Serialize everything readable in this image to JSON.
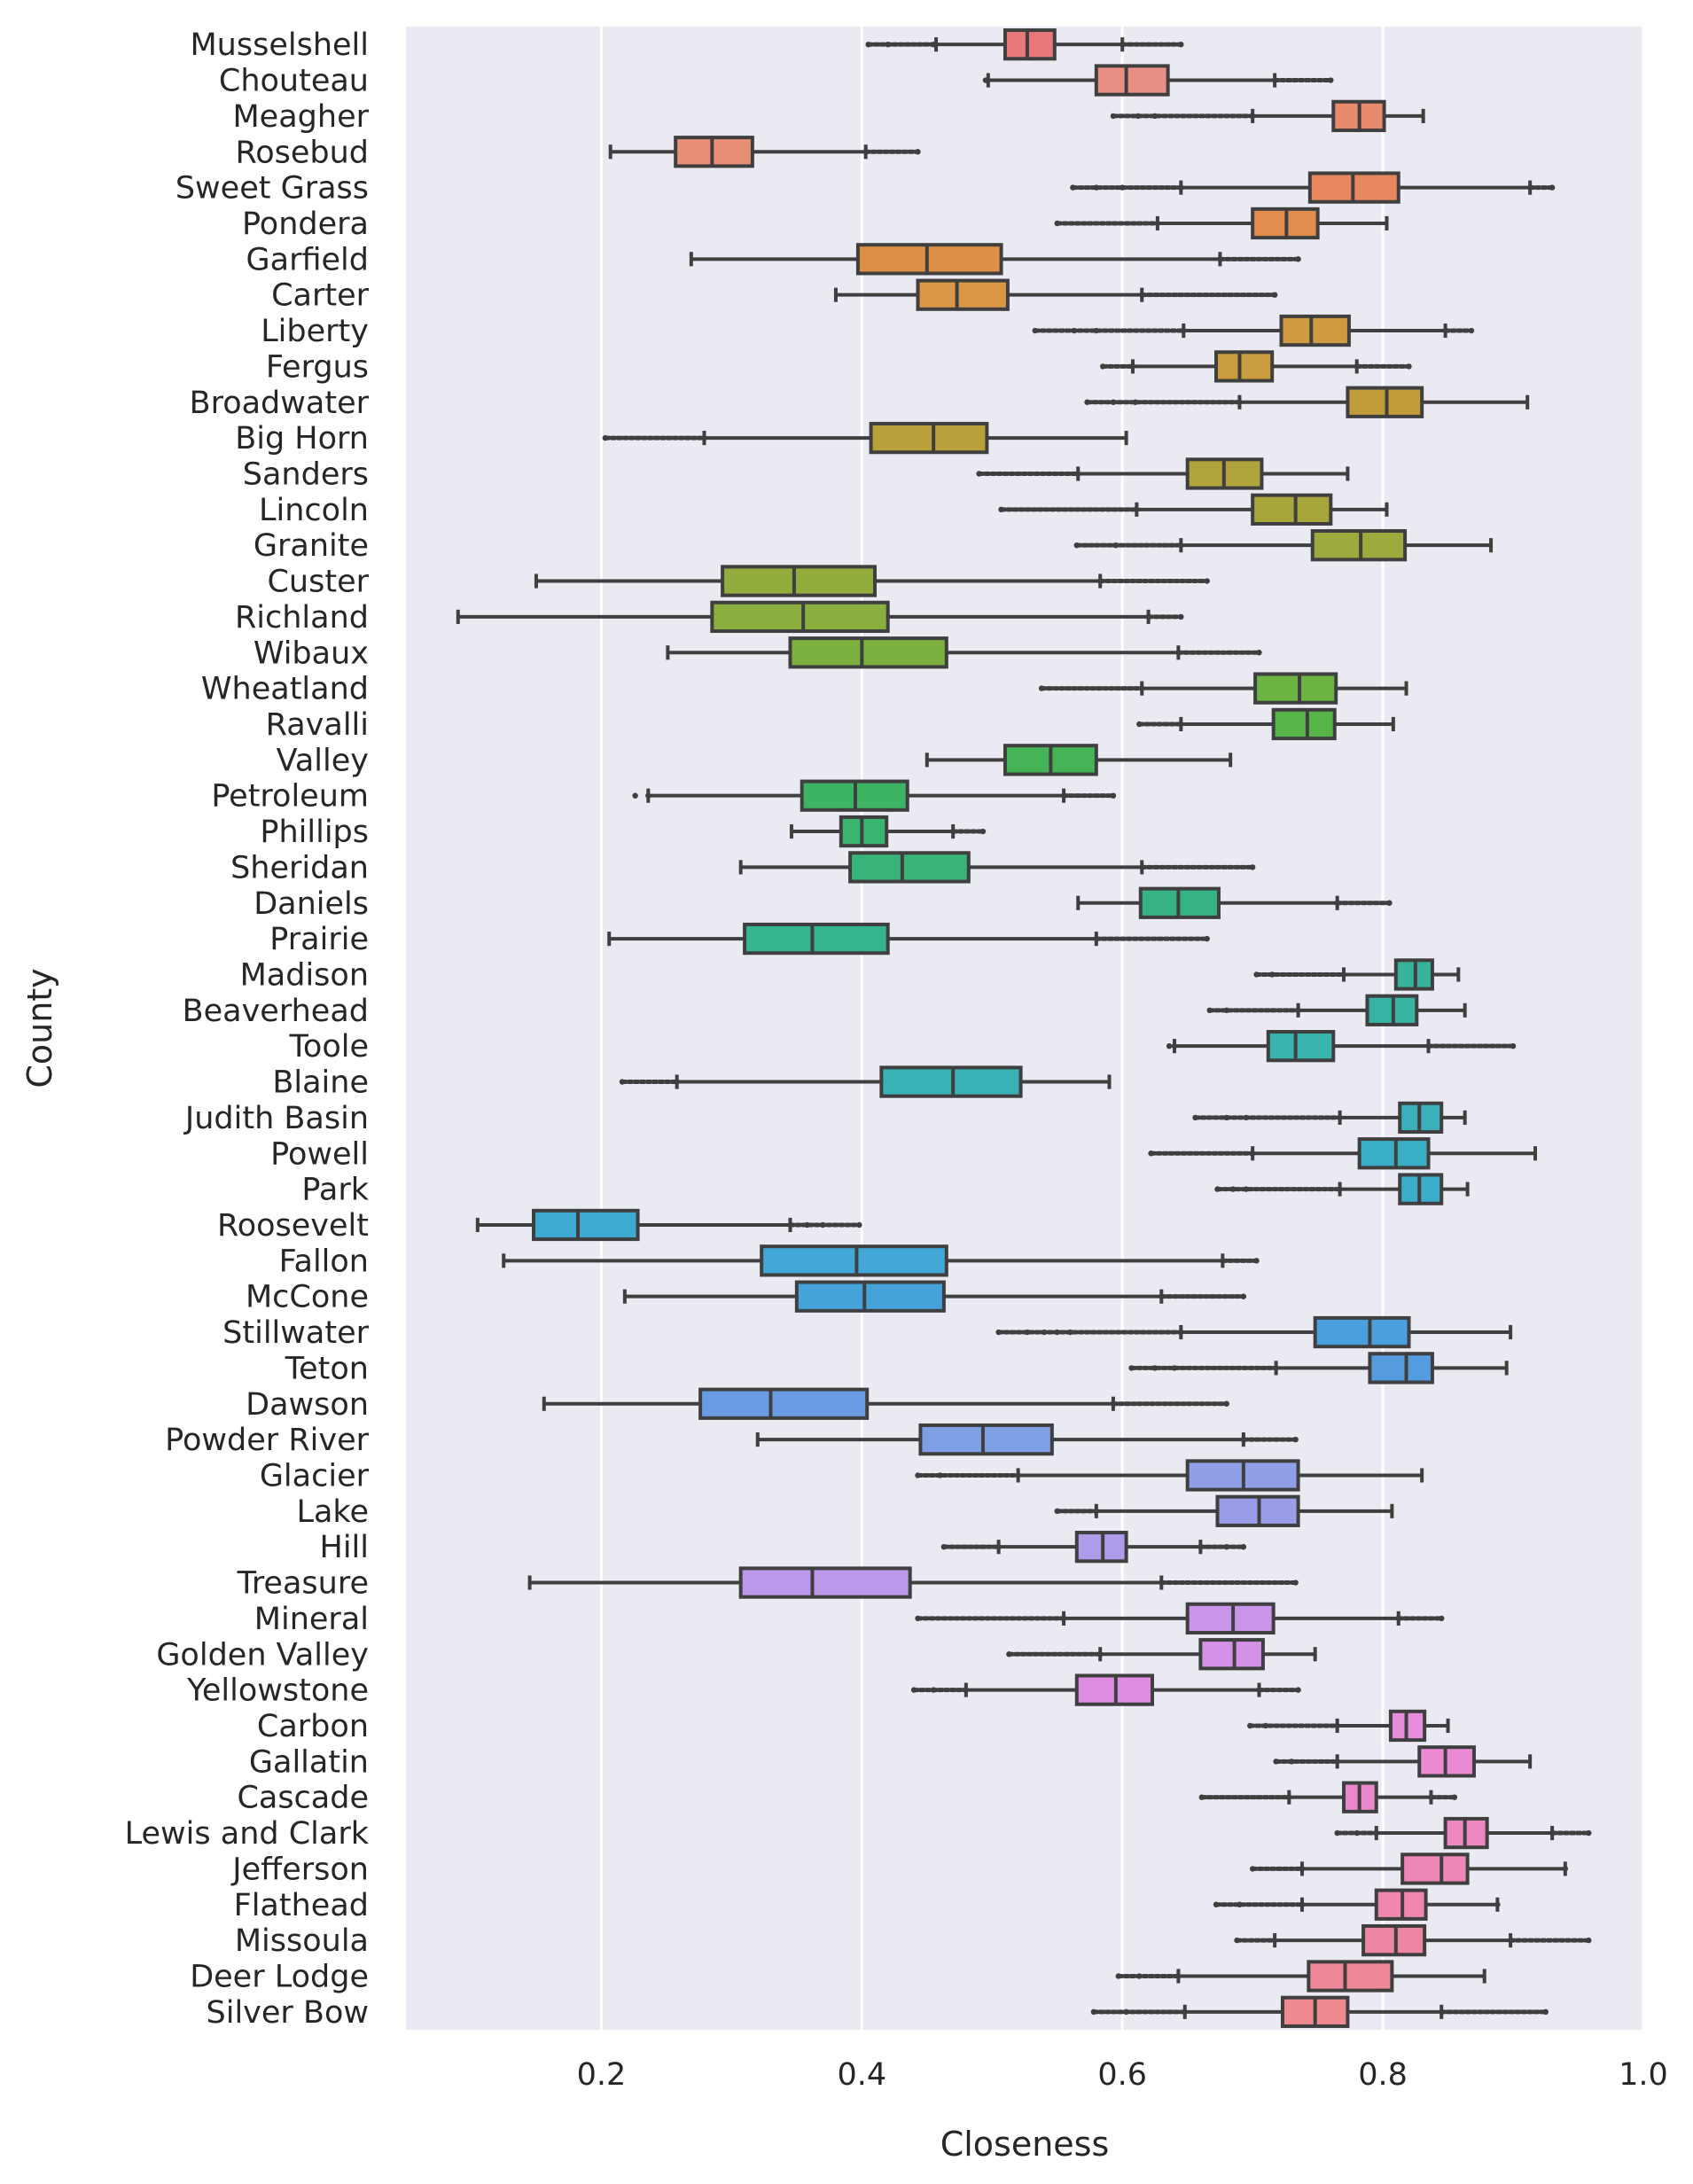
{
  "chart_data": {
    "type": "boxplot",
    "orientation": "horizontal",
    "xlabel": "Closeness",
    "ylabel": "County",
    "xlim": [
      0.05,
      1.0
    ],
    "xticks": [
      0.2,
      0.4,
      0.6,
      0.8,
      1.0
    ],
    "xtick_labels": [
      "0.2",
      "0.4",
      "0.6",
      "0.8",
      "1.0"
    ],
    "grid": true,
    "series": [
      {
        "name": "Musselshell",
        "color": "#e8777a",
        "whisker_low": 0.457,
        "q1": 0.51,
        "median": 0.527,
        "q3": 0.548,
        "whisker_high": 0.6,
        "outliers_low": [
          0.405,
          0.42,
          0.455
        ],
        "outliers_high": [
          0.6,
          0.645
        ]
      },
      {
        "name": "Chouteau",
        "color": "#e98f85",
        "whisker_low": 0.497,
        "q1": 0.58,
        "median": 0.603,
        "q3": 0.635,
        "whisker_high": 0.717,
        "outliers_low": [
          0.495
        ],
        "outliers_high": [
          0.717,
          0.76
        ]
      },
      {
        "name": "Meagher",
        "color": "#e88b6d",
        "whisker_low": 0.7,
        "q1": 0.762,
        "median": 0.782,
        "q3": 0.801,
        "whisker_high": 0.831,
        "outliers_low": [
          0.593,
          0.612,
          0.625,
          0.7
        ],
        "outliers_high": []
      },
      {
        "name": "Rosebud",
        "color": "#e98f76",
        "whisker_low": 0.207,
        "q1": 0.257,
        "median": 0.285,
        "q3": 0.316,
        "whisker_high": 0.403,
        "outliers_low": [],
        "outliers_high": [
          0.403,
          0.443
        ]
      },
      {
        "name": "Sweet Grass",
        "color": "#e6875e",
        "whisker_low": 0.645,
        "q1": 0.744,
        "median": 0.777,
        "q3": 0.812,
        "whisker_high": 0.913,
        "outliers_low": [
          0.562,
          0.58,
          0.6,
          0.645
        ],
        "outliers_high": [
          0.913,
          0.93
        ]
      },
      {
        "name": "Pondera",
        "color": "#e18d4e",
        "whisker_low": 0.627,
        "q1": 0.7,
        "median": 0.726,
        "q3": 0.75,
        "whisker_high": 0.803,
        "outliers_low": [
          0.55,
          0.627
        ],
        "outliers_high": []
      },
      {
        "name": "Garfield",
        "color": "#dd9045",
        "whisker_low": 0.269,
        "q1": 0.397,
        "median": 0.45,
        "q3": 0.507,
        "whisker_high": 0.675,
        "outliers_low": [],
        "outliers_high": [
          0.675,
          0.735
        ]
      },
      {
        "name": "Carter",
        "color": "#d99644",
        "whisker_low": 0.38,
        "q1": 0.443,
        "median": 0.473,
        "q3": 0.512,
        "whisker_high": 0.615,
        "outliers_low": [],
        "outliers_high": [
          0.615,
          0.717
        ]
      },
      {
        "name": "Liberty",
        "color": "#cf9a40",
        "whisker_low": 0.647,
        "q1": 0.722,
        "median": 0.745,
        "q3": 0.774,
        "whisker_high": 0.848,
        "outliers_low": [
          0.533,
          0.563,
          0.58,
          0.647
        ],
        "outliers_high": [
          0.848,
          0.868
        ]
      },
      {
        "name": "Fergus",
        "color": "#c99c3e",
        "whisker_low": 0.608,
        "q1": 0.672,
        "median": 0.69,
        "q3": 0.715,
        "whisker_high": 0.78,
        "outliers_low": [
          0.585,
          0.608
        ],
        "outliers_high": [
          0.78,
          0.82
        ]
      },
      {
        "name": "Broadwater",
        "color": "#c19d3a",
        "whisker_low": 0.69,
        "q1": 0.773,
        "median": 0.803,
        "q3": 0.83,
        "whisker_high": 0.911,
        "outliers_low": [
          0.573,
          0.593,
          0.61,
          0.69
        ],
        "outliers_high": []
      },
      {
        "name": "Big Horn",
        "color": "#baa03b",
        "whisker_low": 0.279,
        "q1": 0.407,
        "median": 0.455,
        "q3": 0.496,
        "whisker_high": 0.603,
        "outliers_low": [
          0.203,
          0.279
        ],
        "outliers_high": []
      },
      {
        "name": "Sanders",
        "color": "#b0a43c",
        "whisker_low": 0.566,
        "q1": 0.65,
        "median": 0.678,
        "q3": 0.707,
        "whisker_high": 0.773,
        "outliers_low": [
          0.49,
          0.566
        ],
        "outliers_high": []
      },
      {
        "name": "Lincoln",
        "color": "#a7a63b",
        "whisker_low": 0.611,
        "q1": 0.7,
        "median": 0.733,
        "q3": 0.76,
        "whisker_high": 0.803,
        "outliers_low": [
          0.507,
          0.611
        ],
        "outliers_high": []
      },
      {
        "name": "Granite",
        "color": "#9eaa3d",
        "whisker_low": 0.645,
        "q1": 0.746,
        "median": 0.783,
        "q3": 0.817,
        "whisker_high": 0.883,
        "outliers_low": [
          0.565,
          0.595,
          0.645
        ],
        "outliers_high": []
      },
      {
        "name": "Custer",
        "color": "#92ac3d",
        "whisker_low": 0.15,
        "q1": 0.293,
        "median": 0.348,
        "q3": 0.41,
        "whisker_high": 0.583,
        "outliers_low": [],
        "outliers_high": [
          0.583,
          0.665
        ]
      },
      {
        "name": "Richland",
        "color": "#8aaf3e",
        "whisker_low": 0.09,
        "q1": 0.285,
        "median": 0.355,
        "q3": 0.42,
        "whisker_high": 0.62,
        "outliers_low": [],
        "outliers_high": [
          0.62,
          0.645
        ]
      },
      {
        "name": "Wibaux",
        "color": "#7cb13f",
        "whisker_low": 0.251,
        "q1": 0.345,
        "median": 0.4,
        "q3": 0.465,
        "whisker_high": 0.643,
        "outliers_low": [],
        "outliers_high": [
          0.643,
          0.705
        ]
      },
      {
        "name": "Wheatland",
        "color": "#6bb442",
        "whisker_low": 0.615,
        "q1": 0.702,
        "median": 0.736,
        "q3": 0.764,
        "whisker_high": 0.818,
        "outliers_low": [
          0.538,
          0.615
        ],
        "outliers_high": []
      },
      {
        "name": "Ravalli",
        "color": "#55b647",
        "whisker_low": 0.645,
        "q1": 0.716,
        "median": 0.742,
        "q3": 0.763,
        "whisker_high": 0.808,
        "outliers_low": [
          0.613,
          0.645
        ],
        "outliers_high": []
      },
      {
        "name": "Valley",
        "color": "#45b456",
        "whisker_low": 0.45,
        "q1": 0.51,
        "median": 0.545,
        "q3": 0.58,
        "whisker_high": 0.683,
        "outliers_low": [],
        "outliers_high": []
      },
      {
        "name": "Petroleum",
        "color": "#3cb464",
        "whisker_low": 0.236,
        "q1": 0.354,
        "median": 0.395,
        "q3": 0.435,
        "whisker_high": 0.555,
        "outliers_low": [
          0.226,
          0.236
        ],
        "outliers_high": [
          0.555,
          0.593
        ]
      },
      {
        "name": "Phillips",
        "color": "#3ab56f",
        "whisker_low": 0.346,
        "q1": 0.384,
        "median": 0.4,
        "q3": 0.419,
        "whisker_high": 0.47,
        "outliers_low": [],
        "outliers_high": [
          0.47,
          0.493
        ]
      },
      {
        "name": "Sheridan",
        "color": "#38b47a",
        "whisker_low": 0.307,
        "q1": 0.391,
        "median": 0.431,
        "q3": 0.482,
        "whisker_high": 0.615,
        "outliers_low": [],
        "outliers_high": [
          0.615,
          0.7
        ]
      },
      {
        "name": "Daniels",
        "color": "#36b385",
        "whisker_low": 0.566,
        "q1": 0.614,
        "median": 0.643,
        "q3": 0.674,
        "whisker_high": 0.765,
        "outliers_low": [],
        "outliers_high": [
          0.765,
          0.805
        ]
      },
      {
        "name": "Prairie",
        "color": "#36b38f",
        "whisker_low": 0.206,
        "q1": 0.31,
        "median": 0.362,
        "q3": 0.42,
        "whisker_high": 0.58,
        "outliers_low": [],
        "outliers_high": [
          0.58,
          0.665
        ]
      },
      {
        "name": "Madison",
        "color": "#36b39a",
        "whisker_low": 0.77,
        "q1": 0.81,
        "median": 0.825,
        "q3": 0.838,
        "whisker_high": 0.858,
        "outliers_low": [
          0.703,
          0.715,
          0.77
        ],
        "outliers_high": []
      },
      {
        "name": "Beaverhead",
        "color": "#37b3a3",
        "whisker_low": 0.735,
        "q1": 0.788,
        "median": 0.808,
        "q3": 0.826,
        "whisker_high": 0.863,
        "outliers_low": [
          0.667,
          0.68,
          0.735
        ],
        "outliers_high": []
      },
      {
        "name": "Toole",
        "color": "#38b3ad",
        "whisker_low": 0.64,
        "q1": 0.712,
        "median": 0.733,
        "q3": 0.762,
        "whisker_high": 0.835,
        "outliers_low": [
          0.636,
          0.64
        ],
        "outliers_high": [
          0.835,
          0.9
        ]
      },
      {
        "name": "Blaine",
        "color": "#38b2b4",
        "whisker_low": 0.258,
        "q1": 0.415,
        "median": 0.47,
        "q3": 0.522,
        "whisker_high": 0.59,
        "outliers_low": [
          0.216,
          0.258
        ],
        "outliers_high": []
      },
      {
        "name": "Judith Basin",
        "color": "#39b0bc",
        "whisker_low": 0.767,
        "q1": 0.813,
        "median": 0.828,
        "q3": 0.845,
        "whisker_high": 0.863,
        "outliers_low": [
          0.656,
          0.68,
          0.695,
          0.767
        ],
        "outliers_high": []
      },
      {
        "name": "Powell",
        "color": "#3aaec4",
        "whisker_low": 0.7,
        "q1": 0.782,
        "median": 0.81,
        "q3": 0.835,
        "whisker_high": 0.917,
        "outliers_low": [
          0.622,
          0.7
        ],
        "outliers_high": []
      },
      {
        "name": "Park",
        "color": "#3badcb",
        "whisker_low": 0.767,
        "q1": 0.813,
        "median": 0.828,
        "q3": 0.845,
        "whisker_high": 0.865,
        "outliers_low": [
          0.673,
          0.685,
          0.695,
          0.767
        ],
        "outliers_high": []
      },
      {
        "name": "Roosevelt",
        "color": "#3caad1",
        "whisker_low": 0.105,
        "q1": 0.148,
        "median": 0.182,
        "q3": 0.228,
        "whisker_high": 0.345,
        "outliers_low": [],
        "outliers_high": [
          0.345,
          0.358,
          0.37,
          0.398
        ]
      },
      {
        "name": "Fallon",
        "color": "#40a7d6",
        "whisker_low": 0.125,
        "q1": 0.323,
        "median": 0.396,
        "q3": 0.465,
        "whisker_high": 0.677,
        "outliers_low": [],
        "outliers_high": [
          0.677,
          0.703
        ]
      },
      {
        "name": "McCone",
        "color": "#45a3da",
        "whisker_low": 0.218,
        "q1": 0.35,
        "median": 0.402,
        "q3": 0.463,
        "whisker_high": 0.63,
        "outliers_low": [],
        "outliers_high": [
          0.63,
          0.693
        ]
      },
      {
        "name": "Stillwater",
        "color": "#4c9fdd",
        "whisker_low": 0.645,
        "q1": 0.748,
        "median": 0.79,
        "q3": 0.82,
        "whisker_high": 0.898,
        "outliers_low": [
          0.505,
          0.527,
          0.54,
          0.55,
          0.56,
          0.645
        ],
        "outliers_high": []
      },
      {
        "name": "Teton",
        "color": "#559be0",
        "whisker_low": 0.718,
        "q1": 0.79,
        "median": 0.818,
        "q3": 0.838,
        "whisker_high": 0.895,
        "outliers_low": [
          0.607,
          0.625,
          0.64,
          0.718
        ],
        "outliers_high": []
      },
      {
        "name": "Dawson",
        "color": "#6a9ce3",
        "whisker_low": 0.156,
        "q1": 0.276,
        "median": 0.33,
        "q3": 0.404,
        "whisker_high": 0.593,
        "outliers_low": [],
        "outliers_high": [
          0.593,
          0.68
        ]
      },
      {
        "name": "Powder River",
        "color": "#7f9fe5",
        "whisker_low": 0.32,
        "q1": 0.445,
        "median": 0.493,
        "q3": 0.546,
        "whisker_high": 0.693,
        "outliers_low": [],
        "outliers_high": [
          0.693,
          0.733
        ]
      },
      {
        "name": "Glacier",
        "color": "#8f9fe8",
        "whisker_low": 0.52,
        "q1": 0.65,
        "median": 0.693,
        "q3": 0.735,
        "whisker_high": 0.83,
        "outliers_low": [
          0.443,
          0.46,
          0.52
        ],
        "outliers_high": []
      },
      {
        "name": "Lake",
        "color": "#9c9de9",
        "whisker_low": 0.58,
        "q1": 0.673,
        "median": 0.705,
        "q3": 0.735,
        "whisker_high": 0.807,
        "outliers_low": [
          0.55,
          0.58
        ],
        "outliers_high": []
      },
      {
        "name": "Hill",
        "color": "#ae9be9",
        "whisker_low": 0.505,
        "q1": 0.565,
        "median": 0.585,
        "q3": 0.603,
        "whisker_high": 0.66,
        "outliers_low": [
          0.463,
          0.505
        ],
        "outliers_high": [
          0.66,
          0.68,
          0.693
        ]
      },
      {
        "name": "Treasure",
        "color": "#bb98ea",
        "whisker_low": 0.145,
        "q1": 0.307,
        "median": 0.362,
        "q3": 0.437,
        "whisker_high": 0.63,
        "outliers_low": [],
        "outliers_high": [
          0.63,
          0.733
        ]
      },
      {
        "name": "Mineral",
        "color": "#c994e9",
        "whisker_low": 0.555,
        "q1": 0.65,
        "median": 0.685,
        "q3": 0.716,
        "whisker_high": 0.812,
        "outliers_low": [
          0.443,
          0.555
        ],
        "outliers_high": [
          0.812,
          0.845
        ]
      },
      {
        "name": "Golden Valley",
        "color": "#d491e6",
        "whisker_low": 0.583,
        "q1": 0.66,
        "median": 0.686,
        "q3": 0.708,
        "whisker_high": 0.748,
        "outliers_low": [
          0.513,
          0.583
        ],
        "outliers_high": []
      },
      {
        "name": "Yellowstone",
        "color": "#de8ee2",
        "whisker_low": 0.48,
        "q1": 0.565,
        "median": 0.595,
        "q3": 0.623,
        "whisker_high": 0.705,
        "outliers_low": [
          0.44,
          0.455,
          0.48
        ],
        "outliers_high": [
          0.705,
          0.735
        ]
      },
      {
        "name": "Carbon",
        "color": "#e78ddc",
        "whisker_low": 0.765,
        "q1": 0.806,
        "median": 0.818,
        "q3": 0.832,
        "whisker_high": 0.85,
        "outliers_low": [
          0.698,
          0.71,
          0.765
        ],
        "outliers_high": []
      },
      {
        "name": "Gallatin",
        "color": "#ea8ad4",
        "whisker_low": 0.765,
        "q1": 0.828,
        "median": 0.848,
        "q3": 0.87,
        "whisker_high": 0.913,
        "outliers_low": [
          0.718,
          0.73,
          0.765
        ],
        "outliers_high": []
      },
      {
        "name": "Cascade",
        "color": "#eb88cb",
        "whisker_low": 0.728,
        "q1": 0.77,
        "median": 0.782,
        "q3": 0.795,
        "whisker_high": 0.837,
        "outliers_low": [
          0.661,
          0.728
        ],
        "outliers_high": [
          0.837,
          0.855
        ]
      },
      {
        "name": "Lewis and Clark",
        "color": "#ec87c1",
        "whisker_low": 0.795,
        "q1": 0.848,
        "median": 0.863,
        "q3": 0.88,
        "whisker_high": 0.93,
        "outliers_low": [
          0.765,
          0.78,
          0.795
        ],
        "outliers_high": [
          0.93,
          0.958
        ]
      },
      {
        "name": "Jefferson",
        "color": "#ee86b8",
        "whisker_low": 0.738,
        "q1": 0.815,
        "median": 0.845,
        "q3": 0.865,
        "whisker_high": 0.94,
        "outliers_low": [
          0.7,
          0.738
        ],
        "outliers_high": [
          0.94
        ]
      },
      {
        "name": "Flathead",
        "color": "#ee86ad",
        "whisker_low": 0.738,
        "q1": 0.795,
        "median": 0.815,
        "q3": 0.833,
        "whisker_high": 0.888,
        "outliers_low": [
          0.672,
          0.69,
          0.738
        ],
        "outliers_high": [
          0.888
        ]
      },
      {
        "name": "Missoula",
        "color": "#ee87a3",
        "whisker_low": 0.717,
        "q1": 0.785,
        "median": 0.81,
        "q3": 0.832,
        "whisker_high": 0.898,
        "outliers_low": [
          0.688,
          0.717
        ],
        "outliers_high": [
          0.898,
          0.958
        ]
      },
      {
        "name": "Deer Lodge",
        "color": "#ef889a",
        "whisker_low": 0.643,
        "q1": 0.743,
        "median": 0.771,
        "q3": 0.807,
        "whisker_high": 0.878,
        "outliers_low": [
          0.597,
          0.613,
          0.643
        ],
        "outliers_high": []
      },
      {
        "name": "Silver Bow",
        "color": "#ef8a91",
        "whisker_low": 0.648,
        "q1": 0.723,
        "median": 0.748,
        "q3": 0.773,
        "whisker_high": 0.845,
        "outliers_low": [
          0.578,
          0.603,
          0.648
        ],
        "outliers_high": [
          0.845,
          0.925
        ]
      }
    ]
  }
}
